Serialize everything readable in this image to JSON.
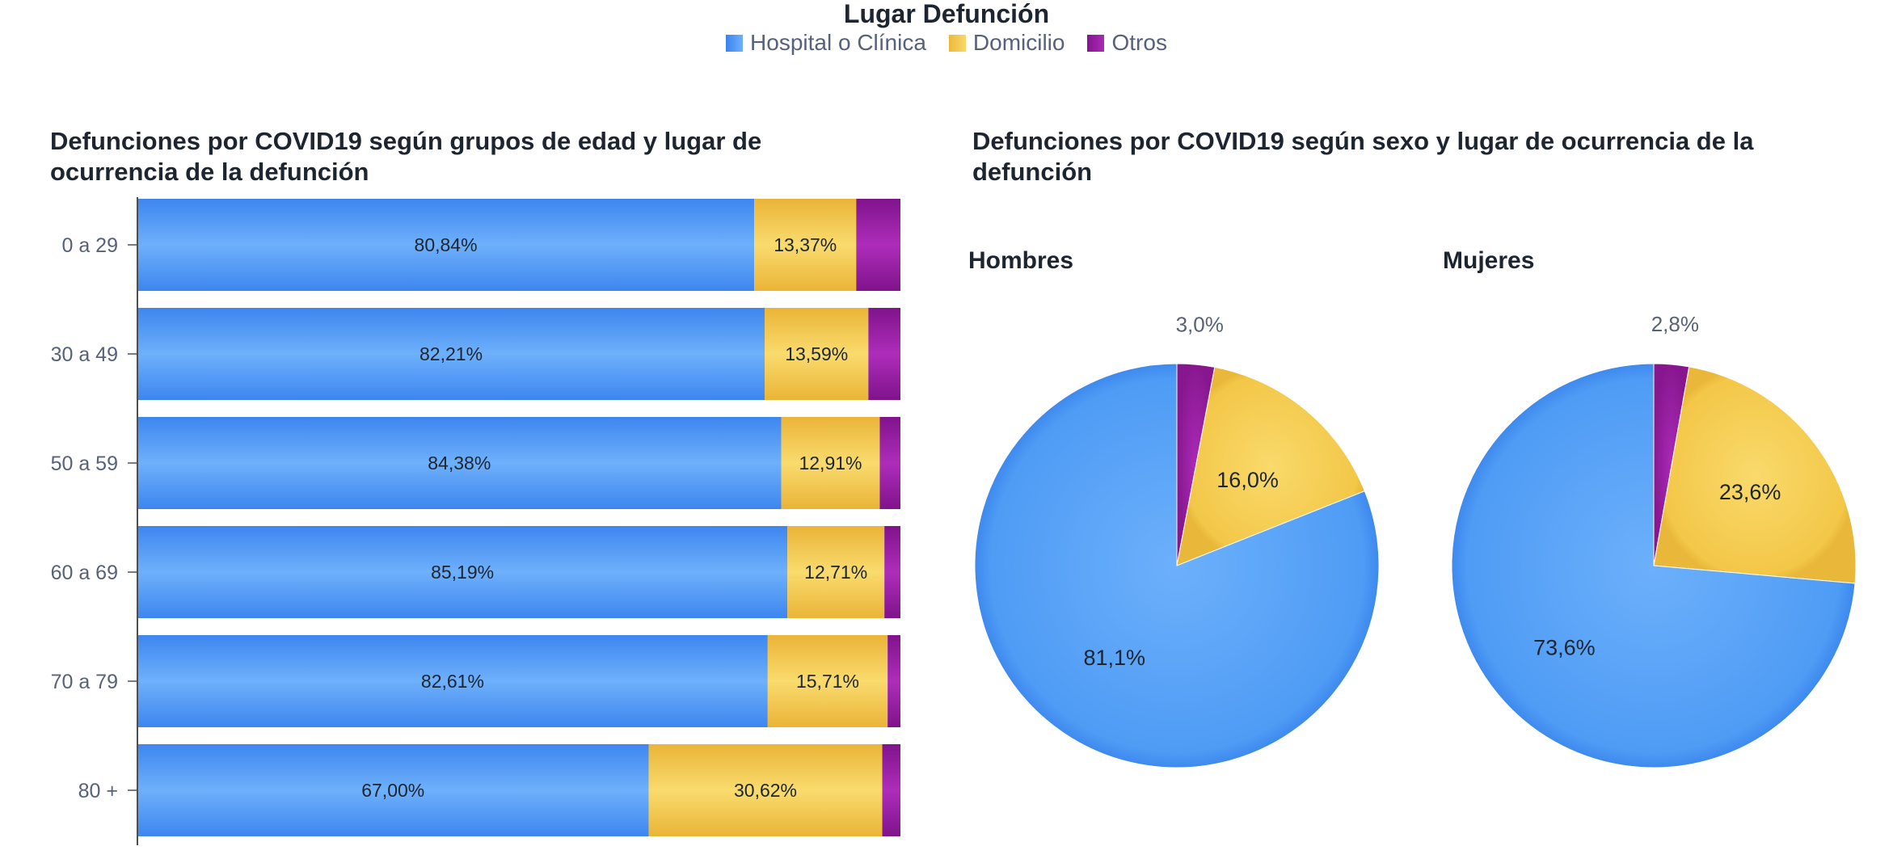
{
  "legend": {
    "title": "Lugar Defunción",
    "items": [
      {
        "label": "Hospital o Clínica",
        "color": "#4f9cf5"
      },
      {
        "label": "Domicilio",
        "color": "#f4c94a"
      },
      {
        "label": "Otros",
        "color": "#9a1ea6"
      }
    ]
  },
  "titles": {
    "bar": "Defunciones por COVID19 según grupos de edad y lugar de ocurrencia de la defunción",
    "pie": "Defunciones por COVID19 según sexo y lugar de ocurrencia de la defunción"
  },
  "chart_data": [
    {
      "type": "bar",
      "orientation": "horizontal",
      "stacked": "percent",
      "title": "Defunciones por COVID19 según grupos de edad y lugar de ocurrencia de la defunción",
      "categories": [
        "0 a 29",
        "30 a 49",
        "50 a 59",
        "60 a 69",
        "70 a 79",
        "80 +"
      ],
      "series": [
        {
          "name": "Hospital o Clínica",
          "values": [
            80.84,
            82.21,
            84.38,
            85.19,
            82.61,
            67.0
          ],
          "labels": [
            "80,84%",
            "82,21%",
            "84,38%",
            "85,19%",
            "82,61%",
            "67,00%"
          ]
        },
        {
          "name": "Domicilio",
          "values": [
            13.37,
            13.59,
            12.91,
            12.71,
            15.71,
            30.62
          ],
          "labels": [
            "13,37%",
            "13,59%",
            "12,91%",
            "12,71%",
            "15,71%",
            "30,62%"
          ]
        },
        {
          "name": "Otros",
          "values": [
            5.79,
            4.2,
            2.71,
            2.1,
            1.68,
            2.38
          ],
          "labels": [
            "",
            "",
            "",
            "",
            "",
            ""
          ]
        }
      ],
      "xlim": [
        0,
        100
      ],
      "grid": false
    },
    {
      "type": "pie",
      "title": "Defunciones por COVID19 según sexo y lugar de ocurrencia de la defunción",
      "subtitle": "Hombres",
      "slices": [
        {
          "name": "Otros",
          "value": 3.0,
          "label": "3,0%"
        },
        {
          "name": "Domicilio",
          "value": 16.0,
          "label": "16,0%"
        },
        {
          "name": "Hospital o Clínica",
          "value": 81.1,
          "label": "81,1%"
        }
      ]
    },
    {
      "type": "pie",
      "title": "Defunciones por COVID19 según sexo y lugar de ocurrencia de la defunción",
      "subtitle": "Mujeres",
      "slices": [
        {
          "name": "Otros",
          "value": 2.8,
          "label": "2,8%"
        },
        {
          "name": "Domicilio",
          "value": 23.6,
          "label": "23,6%"
        },
        {
          "name": "Hospital o Clínica",
          "value": 73.6,
          "label": "73,6%"
        }
      ]
    }
  ]
}
